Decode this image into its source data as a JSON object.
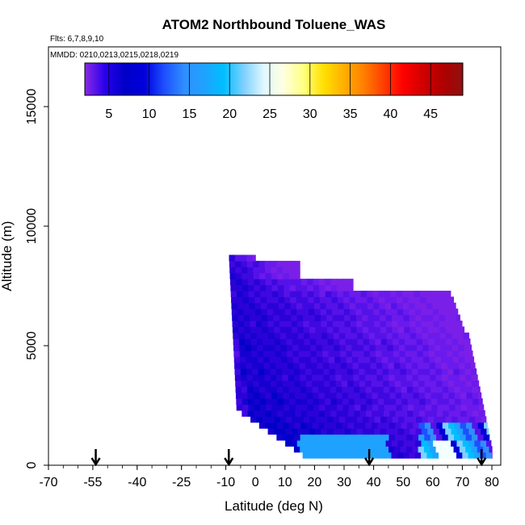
{
  "chart_data": {
    "type": "heatmap",
    "title": "ATOM2 Northbound Toluene_WAS",
    "flights_note": "Flts: 6,7,8,9,10",
    "dates_note": "MMDD: 0210,0213,0215,0218,0219",
    "xlabel": "Latitude (deg N)",
    "ylabel": "Altitude (m)",
    "xlim": [
      -70,
      83
    ],
    "ylim": [
      0,
      17500
    ],
    "x_ticks": [
      "-70",
      "-55",
      "-40",
      "-25",
      "-10",
      "0",
      "10",
      "20",
      "30",
      "40",
      "50",
      "60",
      "70",
      "80"
    ],
    "y_ticks": [
      "0",
      "5000",
      "10000",
      "15000"
    ],
    "colorbar": {
      "ticks": [
        "5",
        "10",
        "15",
        "20",
        "25",
        "30",
        "35",
        "40",
        "45"
      ],
      "range": [
        2,
        49
      ],
      "colors": [
        "#8a2be2",
        "#2a00ee",
        "#0000c8",
        "#0000dc",
        "#1e50ff",
        "#2f8fff",
        "#1fa2ff",
        "#00bfff",
        "#7fd0ff",
        "#e0f8ff",
        "#ffffe0",
        "#ffff80",
        "#ffe000",
        "#ffb000",
        "#ff8000",
        "#ff4000",
        "#ff0000",
        "#d00000",
        "#b00000",
        "#901010"
      ]
    },
    "flight_arrows_lat": [
      -54,
      -9,
      38.5,
      76.5
    ],
    "profile_region": {
      "description_free": true,
      "upper_left_lat": -9,
      "upper_alt": 8900,
      "lower_right_lat": 80,
      "bottom_alt": 300
    }
  }
}
